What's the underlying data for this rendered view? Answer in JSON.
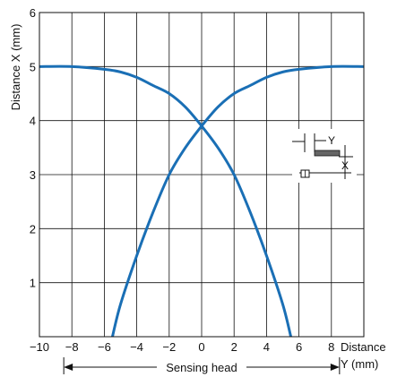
{
  "chart_data": {
    "type": "line",
    "xlabel_line1": "Distance",
    "xlabel_line2": "Y (mm)",
    "ylabel": "Distance X (mm)",
    "xlim": [
      -10,
      10
    ],
    "ylim": [
      0,
      6
    ],
    "x_ticks": [
      -10,
      -8,
      -6,
      -4,
      -2,
      0,
      2,
      4,
      6,
      8
    ],
    "x_tick_labels": [
      "−10",
      "−8",
      "−6",
      "−4",
      "−2",
      "0",
      "2",
      "4",
      "6",
      "8"
    ],
    "y_ticks": [
      1,
      2,
      3,
      4,
      5,
      6
    ],
    "y_tick_labels": [
      "1",
      "2",
      "3",
      "4",
      "5",
      "6"
    ],
    "grid": true,
    "series": [
      {
        "x": [
          -10,
          -8,
          -6,
          -5,
          -4,
          -3,
          -2,
          -1,
          0,
          1,
          2,
          3,
          4,
          5,
          5.5
        ],
        "y": [
          5.0,
          5.0,
          4.95,
          4.9,
          4.8,
          4.65,
          4.5,
          4.25,
          3.9,
          3.5,
          3.0,
          2.3,
          1.5,
          0.6,
          0.0
        ]
      },
      {
        "x": [
          -5.5,
          -5,
          -4,
          -3,
          -2,
          -1,
          0,
          1,
          2,
          3,
          4,
          5,
          6,
          8,
          10
        ],
        "y": [
          0.0,
          0.6,
          1.5,
          2.3,
          3.0,
          3.5,
          3.9,
          4.25,
          4.5,
          4.65,
          4.8,
          4.9,
          4.95,
          5.0,
          5.0
        ]
      }
    ],
    "series_color": "#1a6fb5",
    "annotations": {
      "sensing_head": "Sensing head",
      "sensing_head_range": [
        -8.5,
        8.5
      ],
      "inset_y_label": "Y",
      "inset_x_label": "X"
    }
  }
}
